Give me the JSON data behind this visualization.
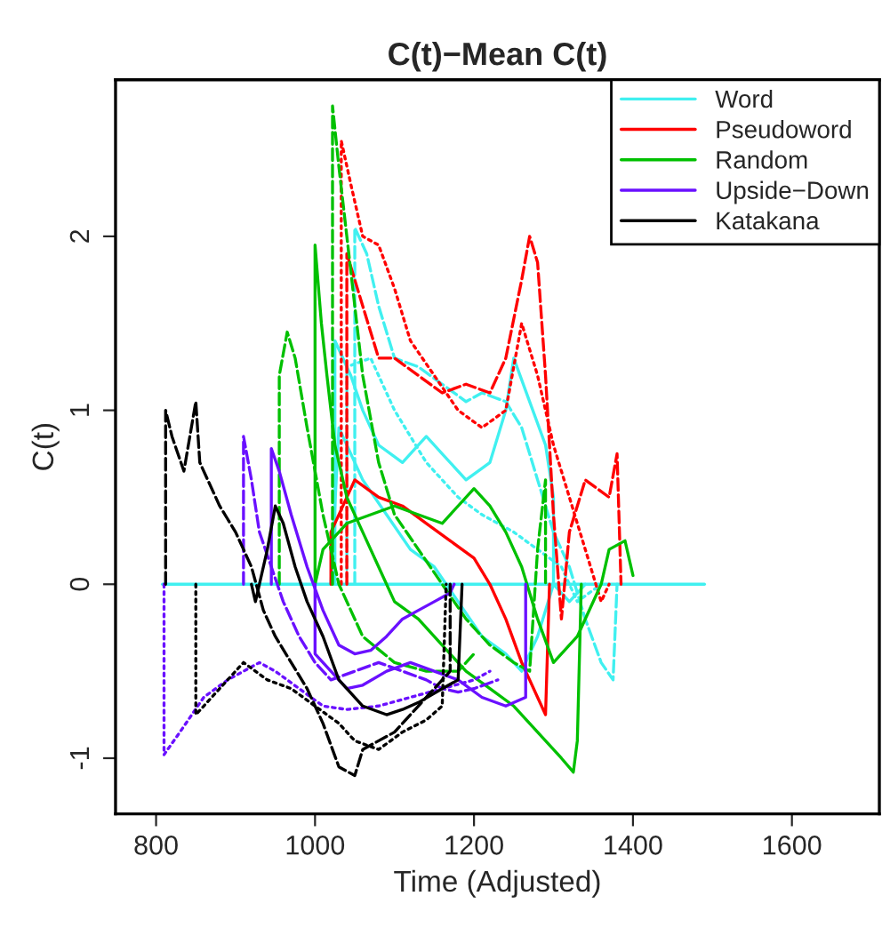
{
  "chart_data": {
    "type": "line",
    "title": "C(t)−Mean C(t)",
    "xlabel": "Time (Adjusted)",
    "ylabel": "C(t)",
    "xlim": [
      749,
      1710
    ],
    "ylim": [
      -1.32,
      2.9
    ],
    "xticks": [
      800,
      1000,
      1200,
      1400,
      1600
    ],
    "yticks": [
      -1,
      0,
      1,
      2
    ],
    "grid": false,
    "legend": "top right",
    "marker": "none",
    "series": [
      {
        "color": "#40f0f0",
        "line_style": "solid",
        "x": [
          808,
          1490
        ],
        "values": [
          0,
          0
        ]
      },
      {
        "name": "Word",
        "color": "#40f0f0",
        "line_style": "solid",
        "x": [
          1025,
          1025,
          1045,
          1060,
          1080,
          1110,
          1140,
          1160,
          1190,
          1220,
          1240,
          1250,
          1270,
          1290,
          1300,
          1300
        ],
        "values": [
          0,
          1.4,
          1.2,
          1.0,
          0.8,
          0.7,
          0.85,
          0.75,
          0.6,
          0.7,
          1.0,
          1.3,
          1.05,
          0.8,
          0.5,
          0
        ]
      },
      {
        "color": "#40f0f0",
        "line_style": "dashed",
        "x": [
          1050,
          1050,
          1065,
          1080,
          1100,
          1130,
          1160,
          1190,
          1210,
          1240,
          1260,
          1280,
          1300,
          1320,
          1340,
          1360,
          1375,
          1380
        ],
        "values": [
          0,
          2.05,
          1.9,
          1.6,
          1.3,
          1.25,
          1.15,
          1.05,
          1.1,
          1.05,
          0.9,
          0.6,
          0.3,
          0.1,
          -0.2,
          -0.45,
          -0.55,
          0
        ]
      },
      {
        "color": "#40f0f0",
        "line_style": "dotted",
        "x": [
          1040,
          1040,
          1070,
          1100,
          1140,
          1180,
          1210,
          1250,
          1280,
          1310,
          1330,
          1360
        ],
        "values": [
          0,
          1.25,
          1.3,
          1.0,
          0.7,
          0.5,
          0.4,
          0.3,
          0.2,
          0.1,
          -0.1,
          0
        ]
      },
      {
        "color": "#40f0f0",
        "line_style": "solid",
        "x": [
          1020,
          1030,
          1060,
          1090,
          1120,
          1150,
          1180,
          1210,
          1240,
          1260,
          1280,
          1300,
          1320,
          1340
        ],
        "values": [
          0,
          0.9,
          0.6,
          0.4,
          0.2,
          0.1,
          -0.1,
          -0.3,
          -0.4,
          -0.5,
          -0.3,
          0,
          -0.1,
          0
        ]
      },
      {
        "name": "Pseudoword",
        "color": "#ff0000",
        "line_style": "solid",
        "x": [
          1020,
          1020,
          1050,
          1080,
          1110,
          1140,
          1170,
          1200,
          1220,
          1240,
          1260,
          1280,
          1290,
          1295
        ],
        "values": [
          0,
          0.3,
          0.6,
          0.5,
          0.45,
          0.35,
          0.25,
          0.15,
          0,
          -0.2,
          -0.45,
          -0.65,
          -0.75,
          0
        ]
      },
      {
        "color": "#ff0000",
        "line_style": "dashed",
        "x": [
          1040,
          1040,
          1060,
          1080,
          1100,
          1130,
          1160,
          1190,
          1220,
          1240,
          1260,
          1270,
          1280,
          1290,
          1300,
          1310,
          1320,
          1340,
          1370,
          1380,
          1385
        ],
        "values": [
          0,
          1.9,
          1.6,
          1.3,
          1.3,
          1.2,
          1.1,
          1.15,
          1.1,
          1.3,
          1.75,
          2.0,
          1.85,
          1.2,
          0.4,
          -0.2,
          0.3,
          0.6,
          0.5,
          0.75,
          0
        ]
      },
      {
        "color": "#ff0000",
        "line_style": "dotted",
        "x": [
          1033,
          1033,
          1045,
          1060,
          1080,
          1100,
          1120,
          1150,
          1180,
          1210,
          1240,
          1260,
          1280,
          1300,
          1320,
          1340,
          1360,
          1370
        ],
        "values": [
          0,
          2.55,
          2.3,
          2.0,
          1.95,
          1.7,
          1.4,
          1.2,
          1.0,
          0.9,
          1.0,
          1.5,
          1.2,
          0.8,
          0.5,
          0.2,
          -0.1,
          0
        ]
      },
      {
        "name": "Random",
        "color": "#00c000",
        "line_style": "solid",
        "x": [
          1000,
          1000,
          1008,
          1015,
          1025,
          1040,
          1060,
          1080,
          1100,
          1130,
          1160,
          1190,
          1220,
          1250,
          1270,
          1290,
          1310,
          1325,
          1330,
          1335
        ],
        "values": [
          0,
          1.95,
          1.5,
          1.2,
          0.8,
          0.5,
          0.3,
          0.1,
          -0.1,
          -0.2,
          -0.35,
          -0.5,
          -0.6,
          -0.7,
          -0.8,
          -0.9,
          -1.0,
          -1.08,
          -0.9,
          0
        ]
      },
      {
        "color": "#00c000",
        "line_style": "solid",
        "x": [
          1000,
          1010,
          1040,
          1070,
          1100,
          1130,
          1160,
          1200,
          1220,
          1240,
          1260,
          1280,
          1300,
          1330,
          1360,
          1370,
          1390,
          1400
        ],
        "values": [
          0,
          0.2,
          0.35,
          0.4,
          0.45,
          0.4,
          0.35,
          0.55,
          0.45,
          0.3,
          0.1,
          -0.2,
          -0.45,
          -0.3,
          0,
          0.2,
          0.25,
          0.05
        ]
      },
      {
        "color": "#00c000",
        "line_style": "dashed",
        "x": [
          1022,
          1022,
          1030,
          1040,
          1050,
          1060,
          1080,
          1100,
          1130,
          1160,
          1190,
          1220,
          1250,
          1270,
          1280,
          1290,
          1290
        ],
        "values": [
          0,
          2.75,
          2.4,
          2.0,
          1.6,
          1.2,
          0.7,
          0.4,
          0.2,
          0,
          -0.2,
          -0.35,
          -0.45,
          -0.5,
          0.2,
          0.6,
          0
        ]
      },
      {
        "color": "#00c000",
        "line_style": "dashed",
        "x": [
          955,
          955,
          965,
          975,
          990,
          1010,
          1030,
          1060,
          1100,
          1140,
          1180,
          1200
        ],
        "values": [
          0,
          1.2,
          1.45,
          1.3,
          0.9,
          0.4,
          0,
          -0.3,
          -0.45,
          -0.5,
          -0.5,
          -0.4
        ]
      },
      {
        "name": "Upside−Down",
        "color": "#6a10ff",
        "line_style": "solid",
        "x": [
          945,
          945,
          955,
          970,
          990,
          1010,
          1030,
          1050,
          1070,
          1090,
          1110,
          1130,
          1150,
          1170,
          1175
        ],
        "values": [
          0,
          0.78,
          0.65,
          0.4,
          0.1,
          -0.15,
          -0.35,
          -0.4,
          -0.38,
          -0.3,
          -0.2,
          -0.15,
          -0.1,
          -0.05,
          0
        ]
      },
      {
        "color": "#6a10ff",
        "line_style": "solid",
        "x": [
          1000,
          1000,
          1020,
          1040,
          1060,
          1090,
          1120,
          1150,
          1180,
          1210,
          1240,
          1265,
          1265
        ],
        "values": [
          0,
          -0.4,
          -0.5,
          -0.6,
          -0.58,
          -0.5,
          -0.45,
          -0.5,
          -0.55,
          -0.65,
          -0.7,
          -0.65,
          0
        ]
      },
      {
        "color": "#6a10ff",
        "line_style": "dashed",
        "x": [
          910,
          910,
          920,
          930,
          945,
          960,
          980,
          1000,
          1020,
          1050,
          1080,
          1110,
          1140,
          1160,
          1180,
          1200,
          1230
        ],
        "values": [
          0,
          0.85,
          0.6,
          0.3,
          0.1,
          -0.1,
          -0.3,
          -0.45,
          -0.55,
          -0.5,
          -0.45,
          -0.5,
          -0.55,
          -0.6,
          -0.62,
          -0.6,
          -0.55
        ]
      },
      {
        "color": "#6a10ff",
        "line_style": "dotted",
        "x": [
          810,
          810,
          830,
          860,
          890,
          910,
          930,
          950,
          980,
          1010,
          1040,
          1080,
          1120,
          1160,
          1200,
          1220
        ],
        "values": [
          0,
          -0.98,
          -0.85,
          -0.65,
          -0.55,
          -0.5,
          -0.45,
          -0.5,
          -0.6,
          -0.7,
          -0.72,
          -0.7,
          -0.65,
          -0.6,
          -0.55,
          -0.5
        ]
      },
      {
        "name": "Katakana",
        "color": "#000000",
        "line_style": "solid",
        "x": [
          920,
          925,
          940,
          950,
          960,
          975,
          990,
          1010,
          1030,
          1060,
          1090,
          1110,
          1130,
          1160,
          1180,
          1185
        ],
        "values": [
          0,
          -0.1,
          0.2,
          0.45,
          0.35,
          0.1,
          -0.1,
          -0.3,
          -0.55,
          -0.7,
          -0.75,
          -0.72,
          -0.68,
          -0.6,
          -0.55,
          0
        ]
      },
      {
        "color": "#000000",
        "line_style": "dashed",
        "x": [
          812,
          812,
          820,
          835,
          850,
          855,
          880,
          900,
          920,
          935,
          950,
          970,
          990,
          1010,
          1030,
          1050,
          1060,
          1080,
          1100,
          1120,
          1140,
          1160,
          1170,
          1170
        ],
        "values": [
          0,
          1.0,
          0.85,
          0.65,
          1.05,
          0.7,
          0.45,
          0.3,
          0.1,
          -0.15,
          -0.3,
          -0.45,
          -0.6,
          -0.8,
          -1.05,
          -1.1,
          -0.95,
          -0.9,
          -0.85,
          -0.75,
          -0.65,
          -0.55,
          -0.5,
          0
        ]
      },
      {
        "color": "#000000",
        "line_style": "dotted",
        "x": [
          850,
          850,
          880,
          910,
          940,
          970,
          1000,
          1030,
          1050,
          1080,
          1110,
          1140,
          1160,
          1165
        ],
        "values": [
          0,
          -0.75,
          -0.6,
          -0.45,
          -0.55,
          -0.6,
          -0.7,
          -0.8,
          -0.9,
          -0.95,
          -0.85,
          -0.78,
          -0.7,
          0
        ]
      }
    ]
  }
}
